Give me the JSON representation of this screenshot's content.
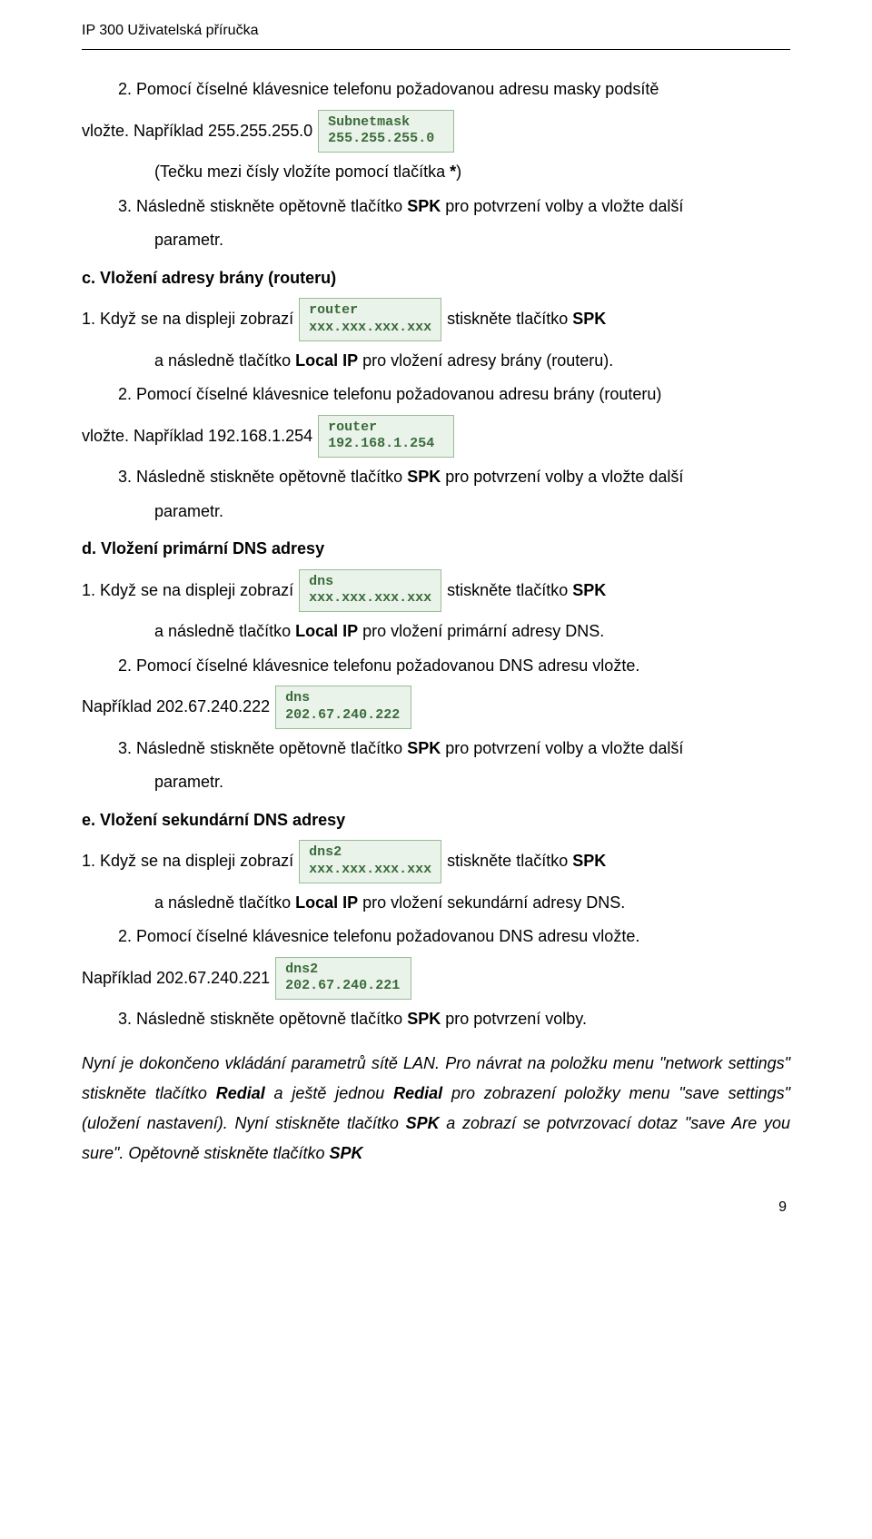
{
  "header": "IP 300 Uživatelská příručka",
  "page_number": "9",
  "lcd_style": {
    "border_color": "#99bb99",
    "background_color": "#eaf3ea",
    "text_color": "#3a6b3a",
    "font_family": "Courier New"
  },
  "sec_b": {
    "step2_a": "2. Pomocí číselné klávesnice telefonu požadovanou adresu masky podsítě",
    "step2_b": "vložte. Například 255.255.255.0",
    "lcd_subnet": "Subnetmask\n255.255.255.0",
    "step2_c": "(Tečku mezi čísly vložíte pomocí tlačítka ",
    "step2_star": "*",
    "step2_c_end": ")",
    "step3_a": "3. Následně stiskněte opětovně tlačítko ",
    "spk": "SPK",
    "step3_b": " pro potvrzení volby a vložte další",
    "step3_c": "parametr."
  },
  "sec_c": {
    "title": "c. Vložení adresy brány (routeru)",
    "step1_a": "1. Když se na displeji zobrazí",
    "lcd_router_blank": "router\nxxx.xxx.xxx.xxx",
    "step1_b": "stiskněte tlačítko ",
    "spk": "SPK",
    "step1_c": "a následně tlačítko ",
    "localip": "Local IP",
    "step1_c_end": " pro vložení adresy brány (routeru).",
    "step2_a": "2. Pomocí číselné klávesnice telefonu požadovanou adresu brány (routeru)",
    "step2_b": "vložte. Například 192.168.1.254",
    "lcd_router_val": "router\n192.168.1.254",
    "step3_a": "3. Následně stiskněte opětovně tlačítko ",
    "step3_b": " pro potvrzení volby a vložte další",
    "step3_c": "parametr."
  },
  "sec_d": {
    "title": "d. Vložení primární DNS adresy",
    "step1_a": "1. Když se na displeji zobrazí",
    "lcd_dns_blank": "dns\nxxx.xxx.xxx.xxx",
    "step1_b": "stiskněte tlačítko ",
    "spk": "SPK",
    "step1_c": "a následně tlačítko ",
    "localip": "Local IP",
    "step1_c_end": " pro vložení primární adresy DNS.",
    "step2_a": "2. Pomocí číselné klávesnice telefonu požadovanou DNS adresu vložte.",
    "step2_b": "Například 202.67.240.222",
    "lcd_dns_val": "dns\n202.67.240.222",
    "step3_a": "3. Následně stiskněte opětovně tlačítko ",
    "step3_b": " pro potvrzení volby a vložte další",
    "step3_c": "parametr."
  },
  "sec_e": {
    "title": "e. Vložení sekundární DNS adresy",
    "step1_a": "1. Když se na displeji zobrazí",
    "lcd_dns2_blank": "dns2\nxxx.xxx.xxx.xxx",
    "step1_b": "stiskněte tlačítko ",
    "spk": "SPK",
    "step1_c": "a následně tlačítko ",
    "localip": "Local IP",
    "step1_c_end": " pro vložení sekundární adresy DNS.",
    "step2_a": "2. Pomocí číselné klávesnice telefonu požadovanou DNS adresu vložte.",
    "step2_b": "Například 202.67.240.221",
    "lcd_dns2_val": "dns2\n202.67.240.221",
    "step3_a": "3. Následně stiskněte opětovně tlačítko ",
    "step3_b": " pro potvrzení volby."
  },
  "footnote": {
    "t1": "Nyní je dokončeno vkládání parametrů sítě LAN. Pro návrat na položku menu \"network settings\" stiskněte tlačítko ",
    "redial1": "Redial",
    "t2": " a ještě jednou ",
    "redial2": "Redial",
    "t3": " pro zobrazení položky menu \"save settings\" (uložení nastavení). Nyní stiskněte tlačítko ",
    "spk1": "SPK",
    "t4": " a zobrazí se potvrzovací dotaz \"save Are you sure\". Opětovně stiskněte tlačítko ",
    "spk2": "SPK"
  }
}
